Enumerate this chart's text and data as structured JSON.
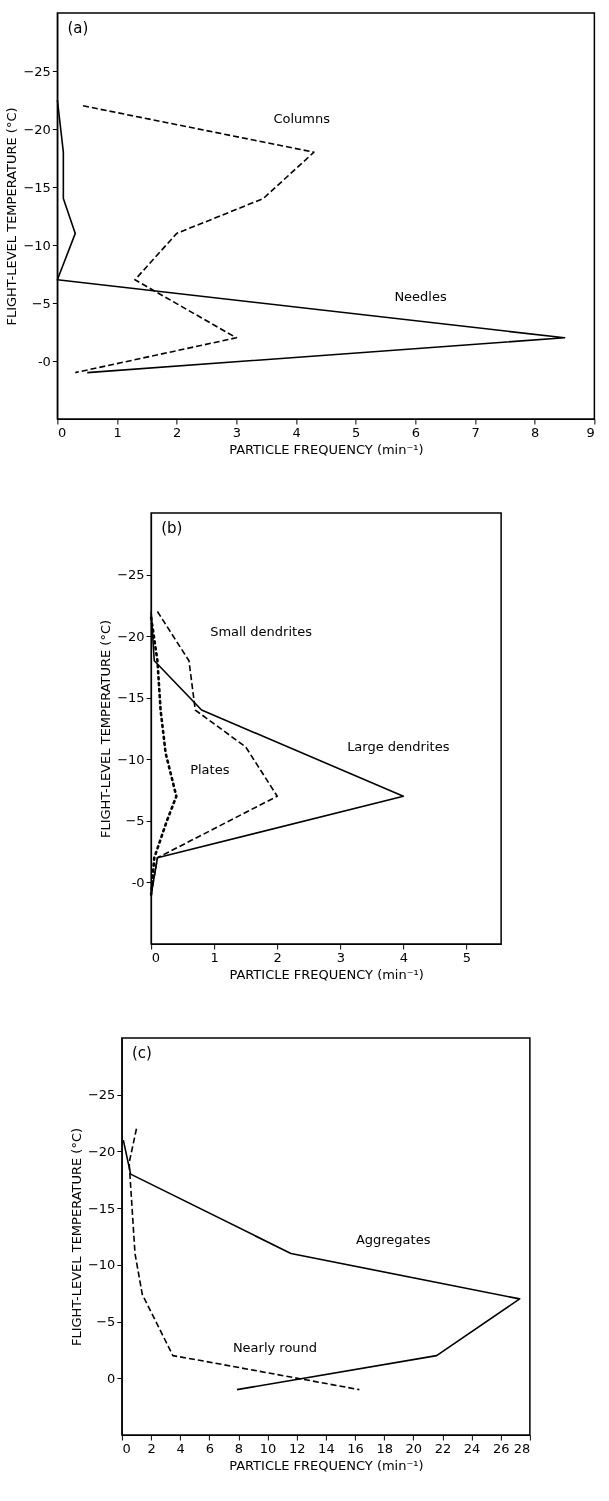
{
  "chart_data": [
    {
      "type": "line",
      "title": "(a)",
      "xlabel": "PARTICLE FREQUENCY (min⁻¹)",
      "ylabel": "FLIGHT-LEVEL TEMPERATURE (°C)",
      "xlim": [
        0,
        9
      ],
      "xticks": [
        0,
        1,
        2,
        3,
        4,
        5,
        6,
        7,
        8,
        9
      ],
      "ylim": [
        5,
        -30
      ],
      "yticks": [
        -25,
        -20,
        -15,
        -10,
        -5,
        {
          "value": 0,
          "label": "-0"
        }
      ],
      "grid": false,
      "series": [
        {
          "name": "Columns",
          "color": "#000000",
          "line_style": "dashed",
          "x": [
            0.43,
            4.3,
            3.45,
            2.0,
            1.3,
            3.0,
            0.3
          ],
          "values": [
            -22,
            -18,
            -14,
            -11,
            -7,
            -2,
            1
          ]
        },
        {
          "name": "Needles",
          "color": "#000000",
          "line_style": "solid",
          "x": [
            0,
            0.1,
            0.1,
            0.3,
            0,
            8.5,
            0.5
          ],
          "values": [
            -22.5,
            -18,
            -14,
            -11,
            -7,
            -2,
            1
          ]
        }
      ]
    },
    {
      "type": "line",
      "title": "(b)",
      "xlabel": "PARTICLE FREQUENCY (min⁻¹)",
      "ylabel": "FLIGHT-LEVEL TEMPERATURE (°C)",
      "xlim": [
        0,
        5.55
      ],
      "xticks": [
        0,
        1,
        2,
        3,
        4,
        5
      ],
      "ylim": [
        5,
        -30
      ],
      "yticks": [
        -25,
        -20,
        -15,
        -10,
        -5,
        {
          "value": 0,
          "label": "-0"
        }
      ],
      "grid": false,
      "series": [
        {
          "name": "Small dendrites",
          "color": "#000000",
          "line_style": "dashed",
          "x": [
            0.1,
            0.6,
            0.7,
            1.5,
            2.0,
            0.1,
            0
          ],
          "values": [
            -22,
            -18,
            -14,
            -11,
            -7,
            -2,
            1
          ]
        },
        {
          "name": "Large dendrites",
          "color": "#000000",
          "line_style": "solid",
          "x": [
            0,
            0.05,
            0.8,
            4.0,
            0.1,
            0
          ],
          "values": [
            -22,
            -18,
            -14,
            -7,
            -2,
            1
          ]
        },
        {
          "name": "Plates",
          "color": "#000000",
          "line_style": "dotted",
          "x": [
            0,
            0.1,
            0.15,
            0.23,
            0.4,
            0.25,
            0.05,
            0
          ],
          "values": [
            -21.5,
            -18,
            -14,
            -10.5,
            -7,
            -5,
            -2,
            1
          ]
        }
      ]
    },
    {
      "type": "line",
      "title": "(c)",
      "xlabel": "PARTICLE FREQUENCY (min⁻¹)",
      "ylabel": "FLIGHT-LEVEL TEMPERATURE (°C)",
      "xlim": [
        0,
        28
      ],
      "xticks": [
        0,
        2,
        4,
        6,
        8,
        10,
        12,
        14,
        16,
        18,
        20,
        22,
        24,
        26,
        28
      ],
      "ylim": [
        5,
        -30
      ],
      "yticks": [
        -25,
        -20,
        -15,
        -10,
        -5,
        0
      ],
      "grid": false,
      "series": [
        {
          "name": "Aggregates",
          "color": "#000000",
          "line_style": "solid",
          "x": [
            0.1,
            0.6,
            11.6,
            27.3,
            21.6,
            7.9
          ],
          "values": [
            -21,
            -18,
            -11,
            -7,
            -2,
            1
          ]
        },
        {
          "name": "Nearly round",
          "color": "#000000",
          "line_style": "dashed",
          "x": [
            1.0,
            0.5,
            0.9,
            1.4,
            3.5,
            5.7,
            16.3
          ],
          "values": [
            -22,
            -19,
            -11,
            -7.4,
            -2,
            -1.5,
            1
          ]
        }
      ]
    }
  ]
}
